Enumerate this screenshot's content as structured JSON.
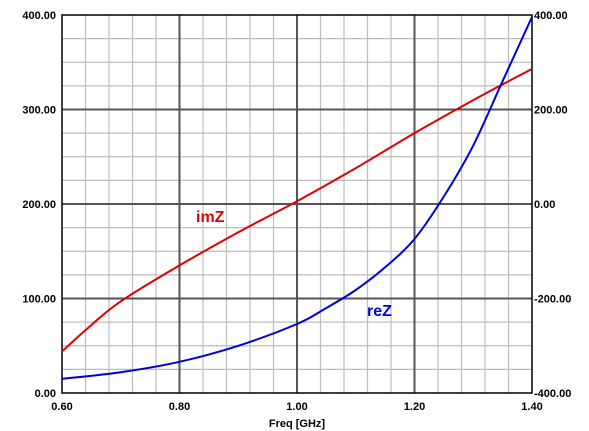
{
  "chart_data": {
    "type": "line",
    "xlabel": "Freq [GHz]",
    "xlim": [
      0.6,
      1.4
    ],
    "x_ticks": [
      "0.60",
      "0.80",
      "1.00",
      "1.20",
      "1.40"
    ],
    "y_left": {
      "lim": [
        0,
        400
      ],
      "ticks": [
        "0.00",
        "100.00",
        "200.00",
        "300.00",
        "400.00"
      ]
    },
    "y_right": {
      "lim": [
        -400,
        400
      ],
      "ticks": [
        "-400.00",
        "-200.00",
        "0.00",
        "200.00",
        "400.00"
      ]
    },
    "grid": true,
    "series": [
      {
        "name": "imZ",
        "axis": "left",
        "color": "#e00000",
        "x": [
          0.6,
          0.65,
          0.7,
          0.8,
          0.9,
          1.0,
          1.1,
          1.2,
          1.3,
          1.4
        ],
        "y": [
          44,
          72,
          97,
          135,
          170,
          203,
          238,
          275,
          310,
          343
        ]
      },
      {
        "name": "reZ",
        "axis": "left",
        "color": "#0000dd",
        "x": [
          0.6,
          0.7,
          0.8,
          0.9,
          1.0,
          1.05,
          1.1,
          1.15,
          1.2,
          1.25,
          1.3,
          1.35,
          1.4
        ],
        "y": [
          15,
          22,
          33,
          50,
          73,
          90,
          109,
          133,
          163,
          208,
          262,
          330,
          398
        ]
      }
    ]
  }
}
